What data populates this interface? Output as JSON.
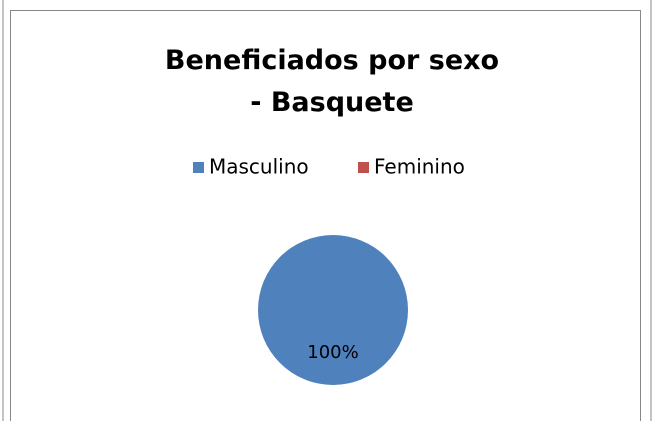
{
  "chart_data": {
    "type": "pie",
    "title": "Beneficiados por sexo - Basquete",
    "categories": [
      "Masculino",
      "Feminino"
    ],
    "values": [
      100,
      0
    ],
    "value_labels": [
      "100%",
      null
    ],
    "colors": [
      "#4f81bd",
      "#c0504d"
    ],
    "legend": "top"
  }
}
